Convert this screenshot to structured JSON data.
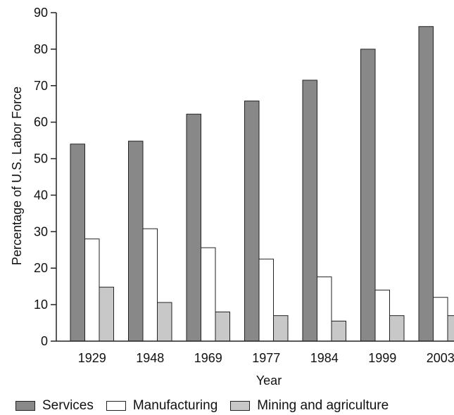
{
  "chart_data": {
    "type": "bar",
    "xlabel": "Year",
    "ylabel": "Percentage of U.S. Labor Force",
    "categories": [
      "1929",
      "1948",
      "1969",
      "1977",
      "1984",
      "1999",
      "2003"
    ],
    "ylim": [
      0,
      90
    ],
    "yticks": [
      0,
      10,
      20,
      30,
      40,
      50,
      60,
      70,
      80,
      90
    ],
    "grid": false,
    "legend_position": "bottom",
    "series": [
      {
        "name": "Services",
        "color": "#888888",
        "values": [
          54,
          54.8,
          62.2,
          65.8,
          71.5,
          80,
          86.2
        ]
      },
      {
        "name": "Manufacturing",
        "color": "#ffffff",
        "values": [
          28,
          30.8,
          25.6,
          22.5,
          17.6,
          14,
          12
        ]
      },
      {
        "name": "Mining and agriculture",
        "color": "#c8c8c8",
        "values": [
          14.8,
          10.6,
          8,
          7,
          5.5,
          7,
          7
        ]
      }
    ]
  }
}
